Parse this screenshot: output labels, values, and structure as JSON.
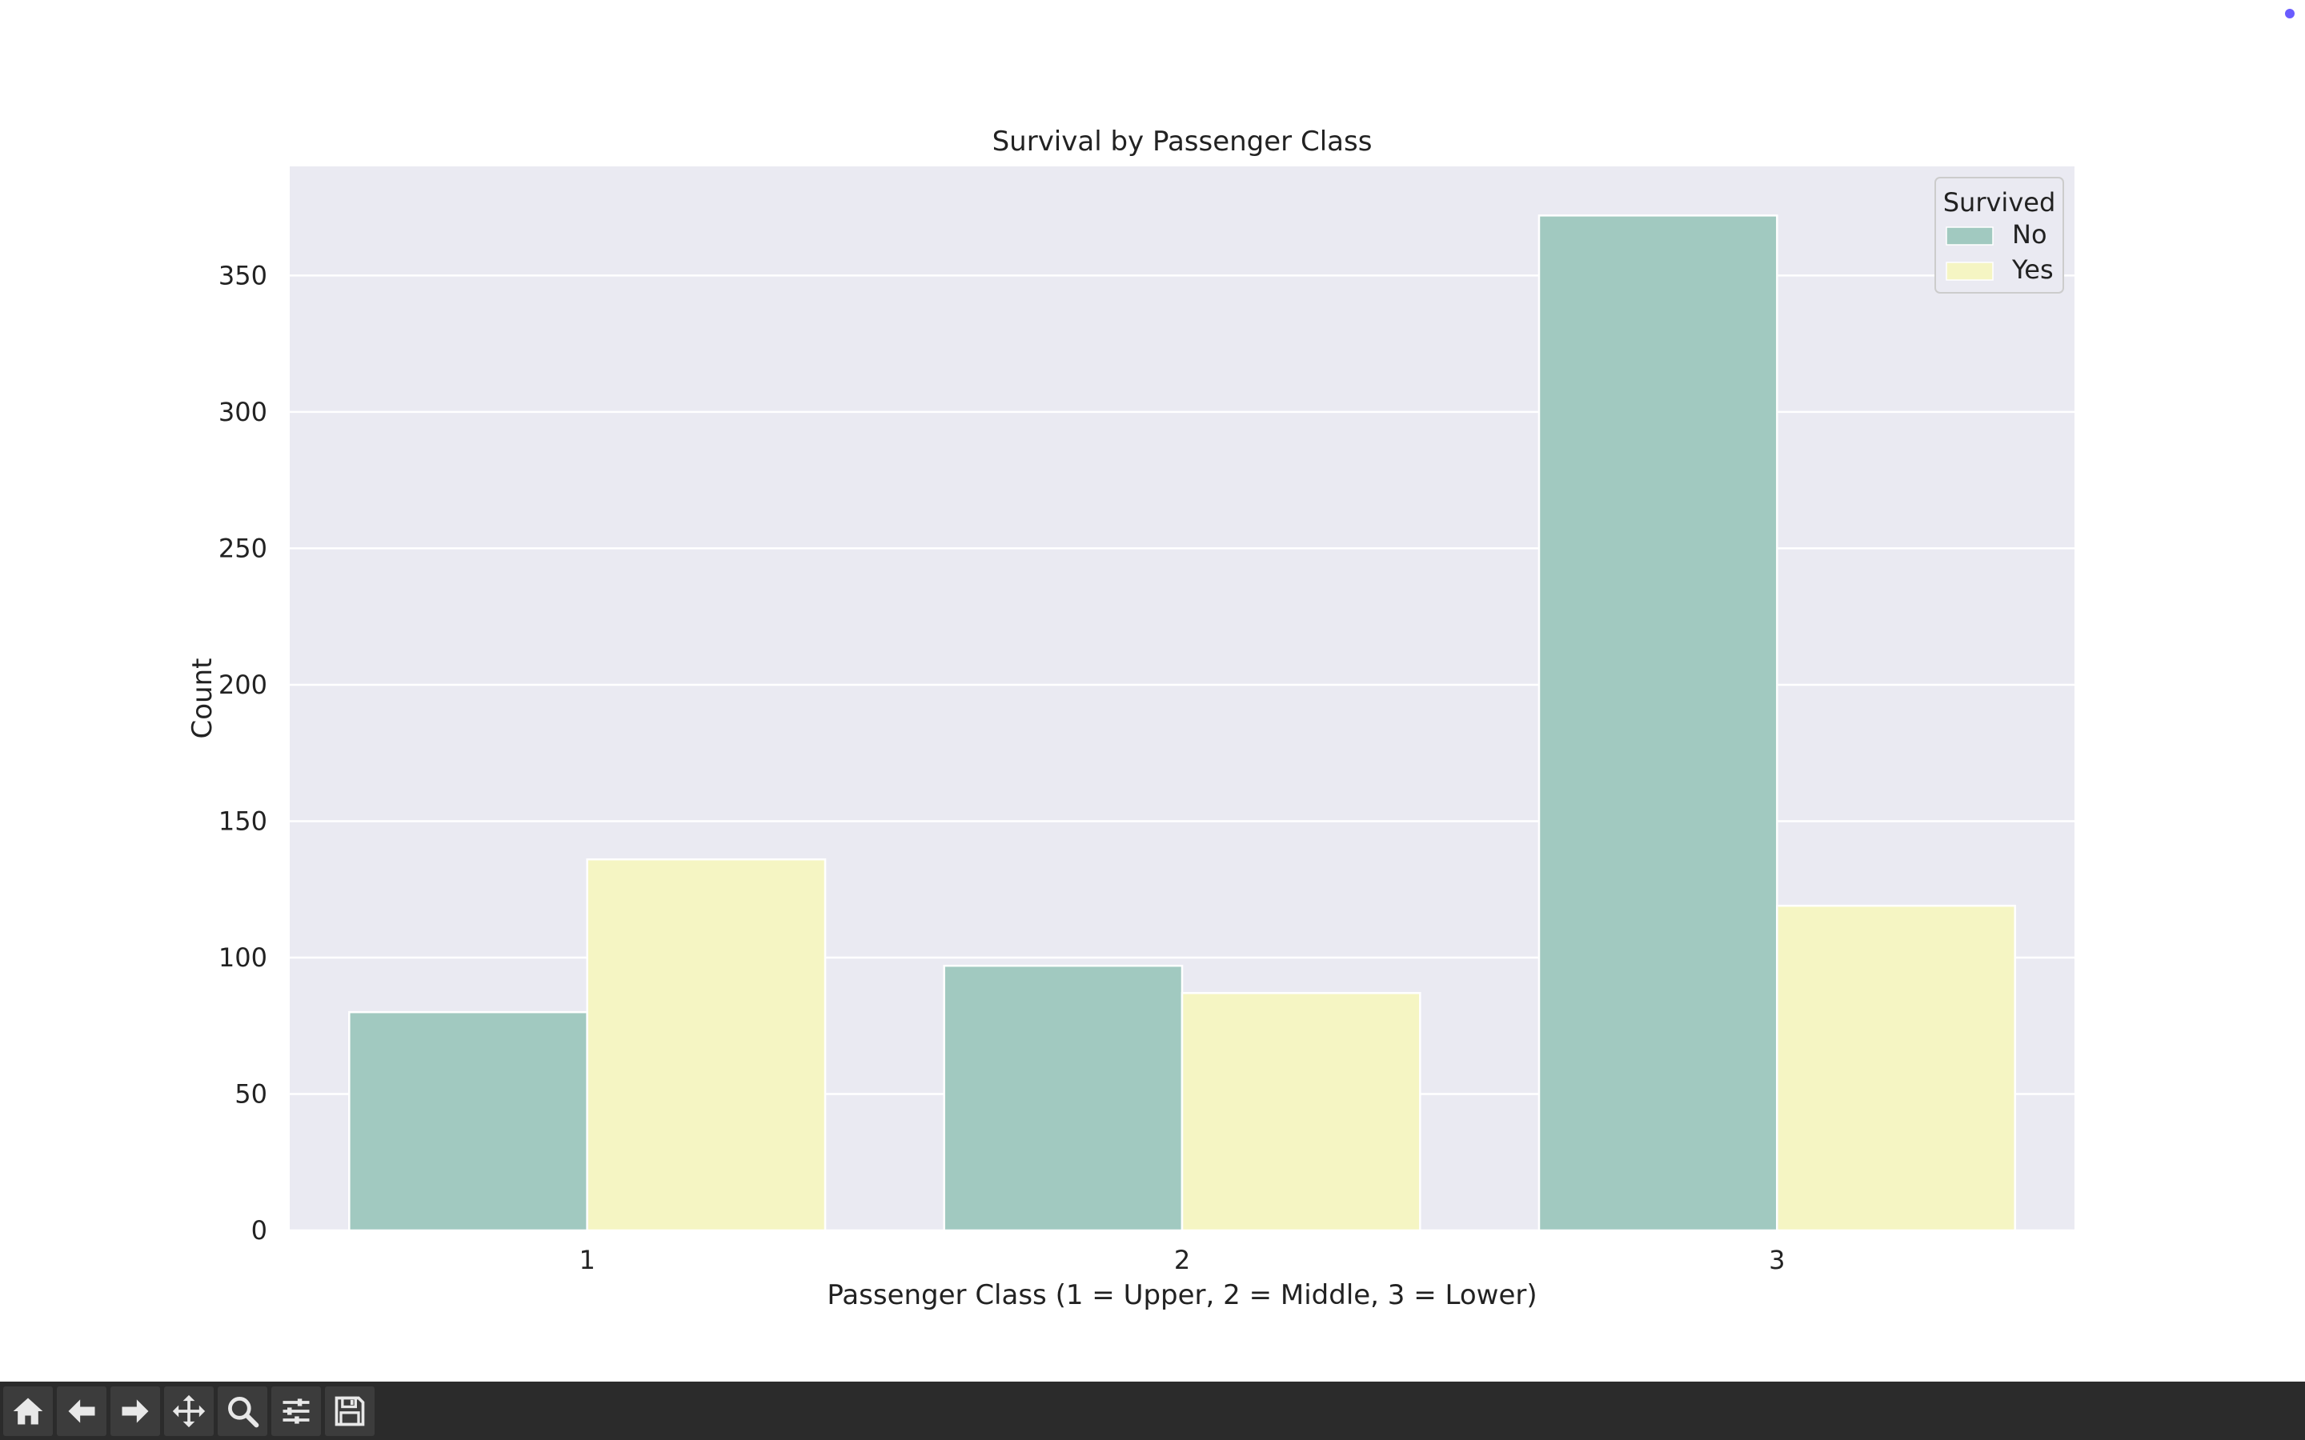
{
  "chart_data": {
    "type": "bar",
    "title": "Survival by Passenger Class",
    "xlabel": "Passenger Class (1 = Upper, 2 = Middle, 3 = Lower)",
    "ylabel": "Count",
    "categories": [
      "1",
      "2",
      "3"
    ],
    "series": [
      {
        "name": "No",
        "values": [
          80,
          97,
          372
        ],
        "color": "#a1c9c0"
      },
      {
        "name": "Yes",
        "values": [
          136,
          87,
          119
        ],
        "color": "#f5f5c3"
      }
    ],
    "ylim": [
      0,
      390
    ],
    "yticks": [
      0,
      50,
      100,
      150,
      200,
      250,
      300,
      350
    ],
    "grid": true,
    "legend": {
      "title": "Survived",
      "placement": "top-right"
    },
    "plot_background": "#eaeaf2"
  },
  "toolbar": {
    "buttons": [
      {
        "name": "home-button",
        "icon": "home-icon"
      },
      {
        "name": "back-button",
        "icon": "arrow-left-icon"
      },
      {
        "name": "forward-button",
        "icon": "arrow-right-icon"
      },
      {
        "name": "pan-button",
        "icon": "move-icon"
      },
      {
        "name": "zoom-button",
        "icon": "magnifier-icon"
      },
      {
        "name": "configure-subplots-button",
        "icon": "sliders-icon"
      },
      {
        "name": "save-button",
        "icon": "floppy-disk-icon"
      }
    ]
  },
  "colors": {
    "toolbar_bg": "#2b2b2b",
    "status_dot": "#6a5cff"
  }
}
